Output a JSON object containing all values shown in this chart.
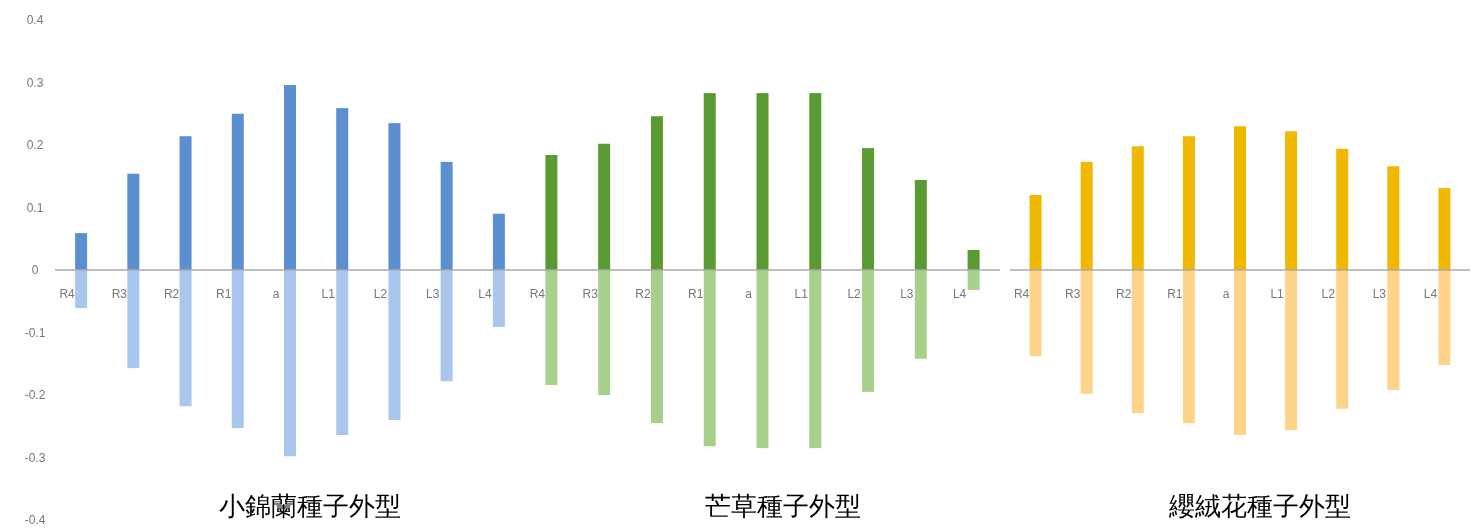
{
  "chart_data": [
    {
      "type": "bar",
      "title": "小錦蘭種子外型",
      "stacked": true,
      "categories": [
        "R4",
        "R3",
        "R2",
        "R1",
        "a",
        "L1",
        "L2",
        "L3",
        "L4"
      ],
      "ylim": [
        -0.4,
        0.4
      ],
      "yticks": [
        -0.4,
        -0.3,
        -0.2,
        -0.1,
        0,
        0.1,
        0.2,
        0.3,
        0.4
      ],
      "series": [
        {
          "color": "#5b8fd0",
          "values": [
            0.059,
            0.154,
            0.214,
            0.25,
            0.296,
            0.259,
            0.235,
            0.173,
            0.09
          ]
        },
        {
          "color": "#a9c6ec",
          "values": [
            -0.061,
            -0.157,
            -0.218,
            -0.253,
            -0.298,
            -0.264,
            -0.24,
            -0.178,
            -0.091
          ]
        }
      ]
    },
    {
      "type": "bar",
      "title": "芒草種子外型",
      "stacked": true,
      "tick_labels": "x",
      "categories": [
        "R4",
        "R3",
        "R2",
        "R1",
        "a",
        "L1",
        "L2",
        "L3",
        "L4"
      ],
      "ylim": [
        -0.4,
        0.4
      ],
      "series": [
        {
          "color": "#5a9a32",
          "values": [
            0.184,
            0.202,
            0.246,
            0.283,
            0.283,
            0.283,
            0.195,
            0.144,
            0.032
          ]
        },
        {
          "color": "#a8d08d",
          "values": [
            -0.184,
            -0.2,
            -0.245,
            -0.282,
            -0.285,
            -0.285,
            -0.195,
            -0.142,
            -0.032
          ]
        }
      ]
    },
    {
      "type": "bar",
      "title": "纓絨花種子外型",
      "stacked": true,
      "tick_labels": "x",
      "categories": [
        "R4",
        "R3",
        "R2",
        "R1",
        "a",
        "L1",
        "L2",
        "L3",
        "L4"
      ],
      "ylim": [
        -0.4,
        0.4
      ],
      "series": [
        {
          "color": "#f0b800",
          "values": [
            0.12,
            0.173,
            0.198,
            0.214,
            0.23,
            0.222,
            0.194,
            0.166,
            0.131
          ]
        },
        {
          "color": "#fdd48a",
          "values": [
            -0.138,
            -0.198,
            -0.229,
            -0.245,
            -0.264,
            -0.256,
            -0.222,
            -0.192,
            -0.152
          ]
        }
      ]
    }
  ]
}
